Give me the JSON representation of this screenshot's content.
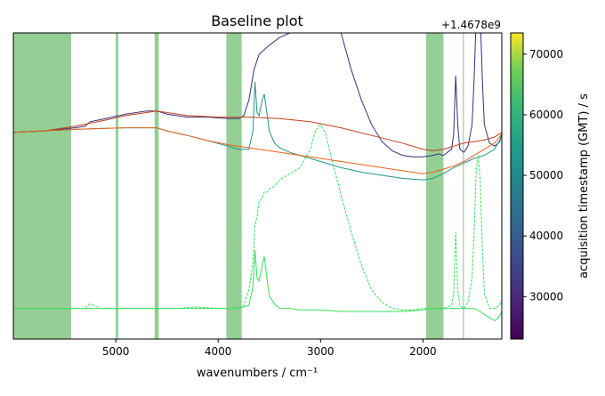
{
  "chart_data": {
    "type": "line",
    "title": "Baseline plot",
    "xlabel": "wavenumbers / cm⁻¹",
    "x_ticks": [
      5000,
      4000,
      3000,
      2000
    ],
    "x_tick_labels": [
      "5000",
      "4000",
      "3000",
      "2000"
    ],
    "xlim": [
      6000,
      1230
    ],
    "x_inverted": true,
    "grid": false,
    "offset_text": "+1.4678e9",
    "shaded_ranges": [
      [
        6000,
        5435
      ],
      [
        5000,
        4975
      ],
      [
        4620,
        4580
      ],
      [
        3920,
        3770
      ],
      [
        1970,
        1800
      ],
      [
        1610,
        1600
      ]
    ],
    "colorbar": {
      "label": "acquisition timestamp (GMT) / s",
      "range": [
        23000,
        73500
      ],
      "ticks": [
        30000,
        40000,
        50000,
        60000,
        70000
      ],
      "tick_labels": [
        "30000",
        "40000",
        "50000",
        "60000",
        "70000"
      ],
      "colormap": "viridis"
    },
    "series": [
      {
        "color": "#3b2f7a",
        "style": "solid",
        "x": [
          6000,
          5700,
          5400,
          5300,
          5250,
          5100,
          4900,
          4700,
          4600,
          4500,
          4300,
          4100,
          3900,
          3800,
          3750,
          3700,
          3650,
          3600,
          3500,
          3400,
          3300,
          3200,
          3100,
          3050,
          3000,
          2950,
          2900,
          2800,
          2700,
          2600,
          2500,
          2400,
          2300,
          2200,
          2100,
          2000,
          1900,
          1850,
          1800,
          1760,
          1720,
          1700,
          1680,
          1660,
          1640,
          1600,
          1560,
          1520,
          1500,
          1480,
          1460,
          1440,
          1420,
          1400,
          1350,
          1300,
          1250,
          1230
        ],
        "y": [
          0.675,
          0.68,
          0.69,
          0.695,
          0.71,
          0.72,
          0.735,
          0.745,
          0.745,
          0.735,
          0.725,
          0.725,
          0.72,
          0.72,
          0.73,
          0.78,
          0.88,
          0.93,
          0.96,
          0.985,
          1.0,
          1.02,
          1.05,
          1.07,
          1.13,
          1.12,
          1.09,
          1.0,
          0.88,
          0.78,
          0.7,
          0.645,
          0.615,
          0.6,
          0.595,
          0.595,
          0.6,
          0.605,
          0.6,
          0.61,
          0.62,
          0.67,
          0.86,
          0.7,
          0.62,
          0.61,
          0.63,
          0.7,
          0.85,
          1.05,
          1.17,
          1.06,
          0.85,
          0.7,
          0.64,
          0.63,
          0.645,
          0.67
        ]
      },
      {
        "color": "#c1401f",
        "style": "solid",
        "x": [
          6000,
          5700,
          5400,
          5100,
          4900,
          4600,
          4300,
          4000,
          3700,
          3400,
          3100,
          2800,
          2500,
          2200,
          2000,
          1900,
          1800,
          1700,
          1600,
          1500,
          1400,
          1300,
          1230
        ],
        "y": [
          0.675,
          0.68,
          0.695,
          0.715,
          0.73,
          0.745,
          0.73,
          0.725,
          0.725,
          0.72,
          0.71,
          0.69,
          0.665,
          0.64,
          0.62,
          0.615,
          0.62,
          0.63,
          0.64,
          0.645,
          0.65,
          0.66,
          0.675
        ]
      },
      {
        "color": "#219589",
        "style": "solid",
        "x": [
          6000,
          5700,
          5400,
          5100,
          4900,
          4700,
          4600,
          4500,
          4300,
          4100,
          3900,
          3800,
          3700,
          3660,
          3640,
          3620,
          3600,
          3570,
          3550,
          3520,
          3500,
          3450,
          3400,
          3300,
          3200,
          3100,
          3000,
          2900,
          2800,
          2600,
          2400,
          2200,
          2000,
          1900,
          1800,
          1700,
          1600,
          1500,
          1400,
          1300,
          1250,
          1230
        ],
        "y": [
          0.675,
          0.68,
          0.685,
          0.688,
          0.69,
          0.69,
          0.69,
          0.68,
          0.665,
          0.648,
          0.63,
          0.62,
          0.62,
          0.68,
          0.84,
          0.74,
          0.73,
          0.78,
          0.8,
          0.73,
          0.68,
          0.64,
          0.625,
          0.61,
          0.6,
          0.59,
          0.58,
          0.57,
          0.56,
          0.545,
          0.535,
          0.525,
          0.52,
          0.525,
          0.54,
          0.56,
          0.575,
          0.59,
          0.6,
          0.62,
          0.65,
          0.675
        ]
      },
      {
        "color": "#e8601c",
        "style": "solid",
        "x": [
          6000,
          5700,
          5400,
          5100,
          4900,
          4700,
          4600,
          4500,
          4300,
          4100,
          3900,
          3700,
          3500,
          3300,
          3100,
          2900,
          2700,
          2500,
          2300,
          2100,
          2000,
          1900,
          1800,
          1700,
          1600,
          1500,
          1400,
          1300,
          1230
        ],
        "y": [
          0.675,
          0.68,
          0.685,
          0.688,
          0.69,
          0.69,
          0.69,
          0.68,
          0.665,
          0.648,
          0.635,
          0.625,
          0.615,
          0.605,
          0.595,
          0.585,
          0.575,
          0.565,
          0.555,
          0.545,
          0.54,
          0.545,
          0.555,
          0.565,
          0.58,
          0.6,
          0.62,
          0.64,
          0.67
        ]
      },
      {
        "color": "#35e05a",
        "style": "dashed",
        "x": [
          6000,
          5500,
          5300,
          5250,
          5150,
          5000,
          4800,
          4600,
          4400,
          4200,
          4000,
          3850,
          3750,
          3700,
          3660,
          3640,
          3620,
          3600,
          3570,
          3550,
          3520,
          3500,
          3450,
          3400,
          3300,
          3200,
          3100,
          3050,
          3000,
          2950,
          2900,
          2800,
          2700,
          2600,
          2500,
          2400,
          2300,
          2200,
          2100,
          2000,
          1900,
          1800,
          1760,
          1720,
          1700,
          1680,
          1660,
          1640,
          1600,
          1560,
          1520,
          1500,
          1480,
          1460,
          1440,
          1420,
          1400,
          1350,
          1300,
          1250,
          1230
        ],
        "y": [
          0.1,
          0.1,
          0.1,
          0.115,
          0.1,
          0.1,
          0.1,
          0.1,
          0.1,
          0.105,
          0.1,
          0.1,
          0.11,
          0.16,
          0.25,
          0.37,
          0.4,
          0.45,
          0.46,
          0.48,
          0.48,
          0.49,
          0.5,
          0.52,
          0.54,
          0.56,
          0.62,
          0.68,
          0.7,
          0.67,
          0.6,
          0.47,
          0.35,
          0.24,
          0.16,
          0.12,
          0.1,
          0.095,
          0.095,
          0.1,
          0.1,
          0.1,
          0.105,
          0.11,
          0.15,
          0.35,
          0.16,
          0.11,
          0.1,
          0.12,
          0.2,
          0.35,
          0.55,
          0.6,
          0.52,
          0.3,
          0.15,
          0.1,
          0.1,
          0.11,
          0.13
        ]
      },
      {
        "color": "#35e05a",
        "style": "solid",
        "x": [
          6000,
          5500,
          5100,
          4900,
          4700,
          4500,
          4300,
          4100,
          3900,
          3800,
          3700,
          3660,
          3640,
          3620,
          3600,
          3570,
          3550,
          3520,
          3500,
          3450,
          3400,
          3300,
          3200,
          3000,
          2800,
          2600,
          2400,
          2200,
          2000,
          1900,
          1800,
          1700,
          1600,
          1560,
          1520,
          1500,
          1470,
          1440,
          1400,
          1350,
          1300,
          1260,
          1230
        ],
        "y": [
          0.1,
          0.1,
          0.1,
          0.1,
          0.1,
          0.1,
          0.1,
          0.1,
          0.1,
          0.1,
          0.11,
          0.17,
          0.29,
          0.2,
          0.19,
          0.24,
          0.27,
          0.19,
          0.14,
          0.115,
          0.1,
          0.1,
          0.095,
          0.095,
          0.09,
          0.09,
          0.09,
          0.09,
          0.095,
          0.1,
          0.1,
          0.1,
          0.1,
          0.1,
          0.1,
          0.1,
          0.095,
          0.09,
          0.08,
          0.07,
          0.06,
          0.07,
          0.09
        ]
      }
    ]
  }
}
